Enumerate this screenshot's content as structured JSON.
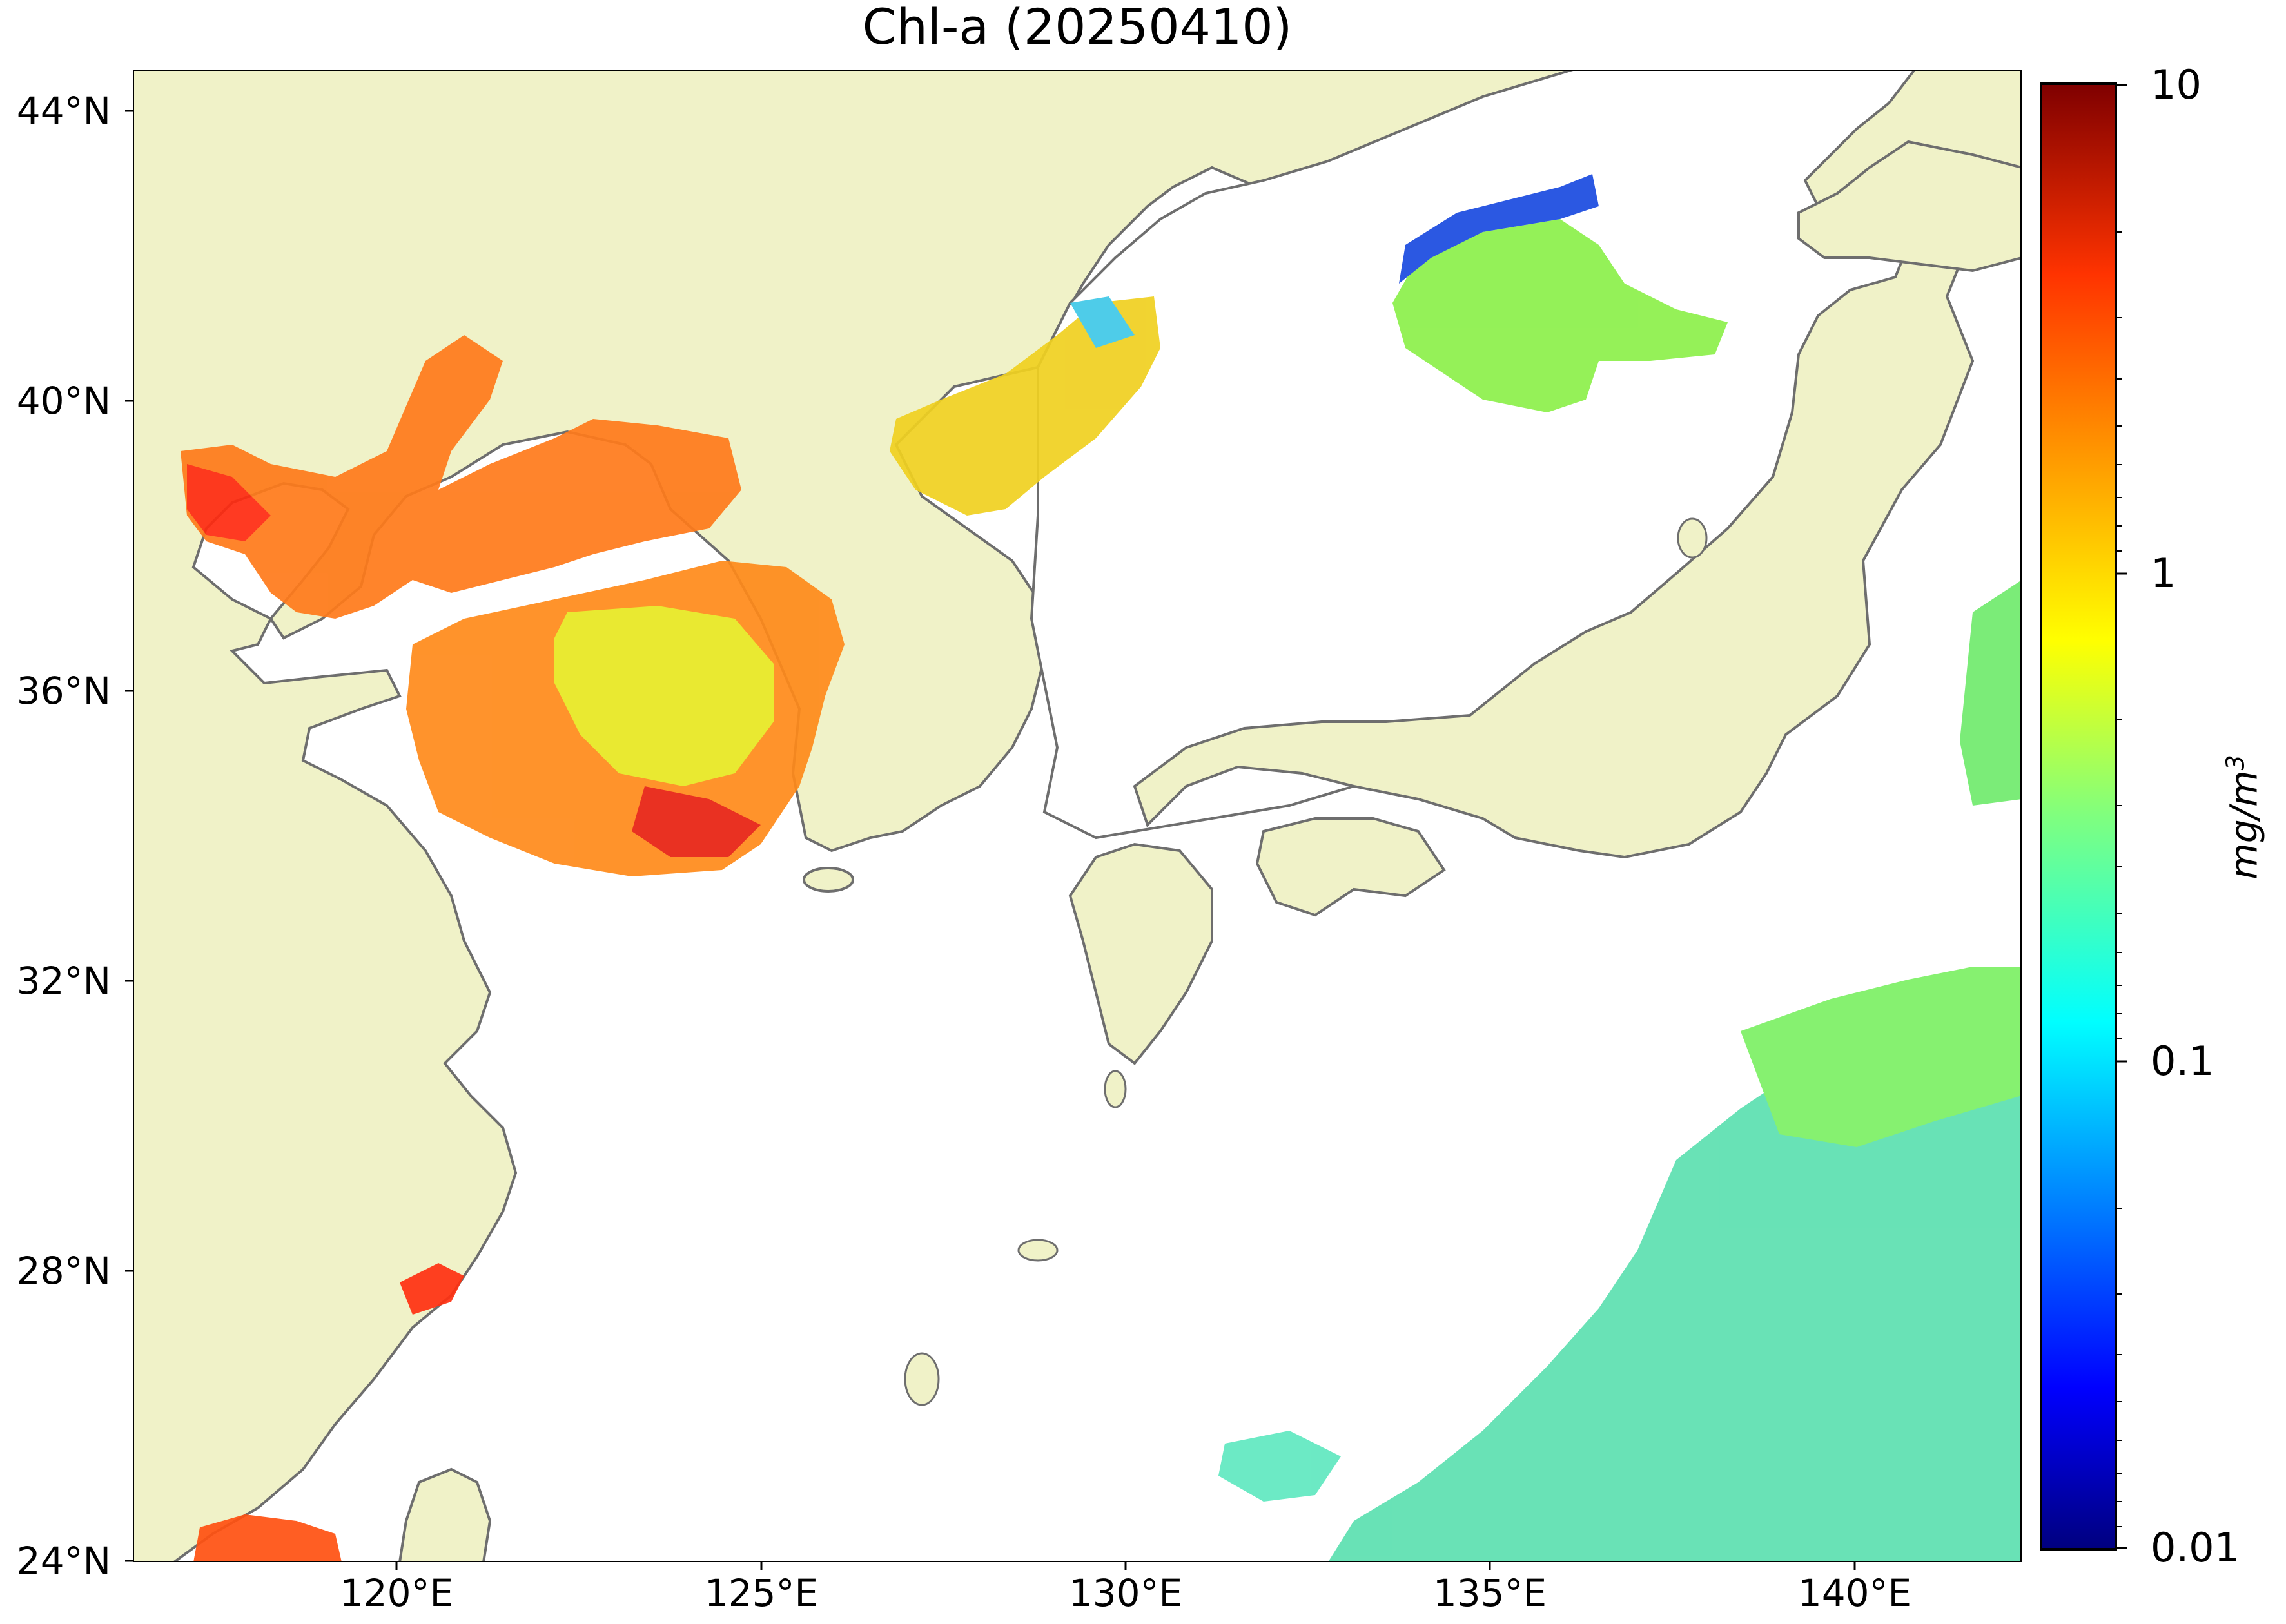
{
  "title": "Chl-a (20250410)",
  "map": {
    "region": "East China Sea / Yellow Sea / Sea of Japan",
    "lat_range": [
      24,
      44.5
    ],
    "lon_range": [
      116.5,
      143
    ],
    "land_color": "#f0f2c8",
    "ocean_color": "#ffffff",
    "coastline_color": "#6e6e6e",
    "lat_ticks": [
      "44°N",
      "40°N",
      "36°N",
      "32°N",
      "28°N",
      "24°N"
    ],
    "lon_ticks": [
      "120°E",
      "125°E",
      "130°E",
      "135°E",
      "140°E"
    ]
  },
  "colorbar": {
    "colormap": "jet",
    "scale": "log",
    "range": [
      0.01,
      10
    ],
    "ticks": [
      "10",
      "1",
      "0.1",
      "0.01"
    ],
    "unit": "mg/m",
    "unit_exponent": "3"
  },
  "patches": [
    {
      "name": "bohai-sea",
      "level": "high"
    },
    {
      "name": "yellow-sea",
      "level": "high"
    },
    {
      "name": "korea-bay-north",
      "level": "medium"
    },
    {
      "name": "sea-of-japan-north",
      "level": "low-medium"
    },
    {
      "name": "pacific-south-east",
      "level": "low"
    },
    {
      "name": "taiwan-strait",
      "level": "high"
    }
  ]
}
